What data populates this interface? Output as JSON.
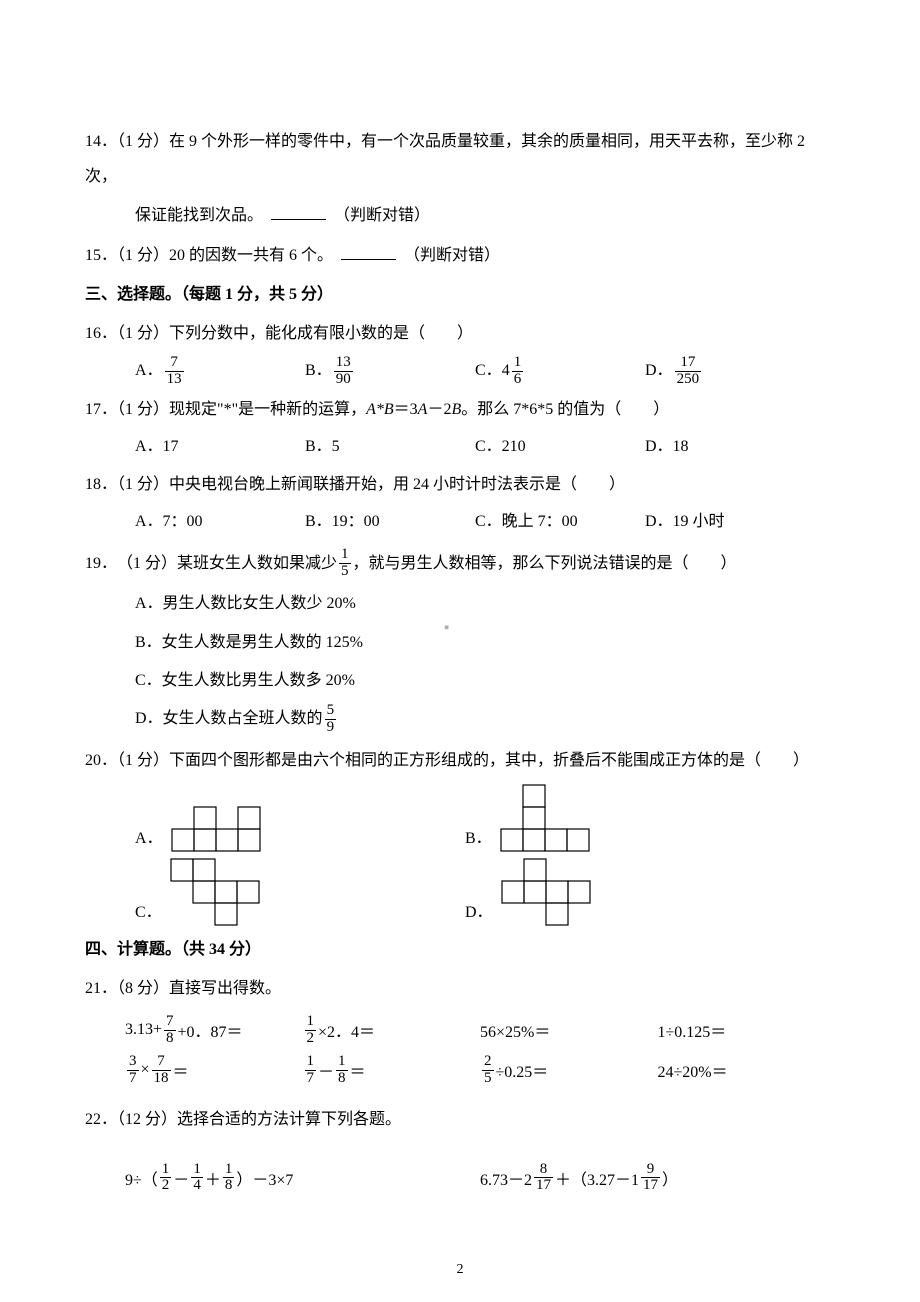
{
  "q14": {
    "num": "14．",
    "pts": "（1 分）",
    "text_a": "在 9 个外形一样的零件中，有一个次品质量较重，其余的质量相同，用天平去称，至少称 2 次，",
    "text_b": "保证能找到次品。",
    "judge": "（判断对错）"
  },
  "q15": {
    "num": "15．",
    "pts": "（1 分）",
    "text": "20 的因数一共有 6 个。",
    "judge": "（判断对错）"
  },
  "sec3": "三、选择题。（每题 1 分，共 5 分）",
  "q16": {
    "num": "16．",
    "pts": "（1 分）",
    "text": "下列分数中，能化成有限小数的是（　　）",
    "A": "A．",
    "B": "B．",
    "C": "C．",
    "D": "D．",
    "fracA_n": "7",
    "fracA_d": "13",
    "fracB_n": "13",
    "fracB_d": "90",
    "c_pre": "4",
    "fracC_n": "1",
    "fracC_d": "6",
    "fracD_n": "17",
    "fracD_d": "250"
  },
  "q17": {
    "num": "17．",
    "pts": "（1 分）",
    "text_a": "现规定\"*\"是一种新的运算，",
    "text_b": "＝3",
    "text_c": "－2",
    "text_d": "。那么 7*6*5 的值为（　　）",
    "AB_var": "A*B",
    "A_var": "A",
    "B_var": "B",
    "A": "A．17",
    "B": "B．5",
    "C": "C．210",
    "D": "D．18"
  },
  "q18": {
    "num": "18．",
    "pts": "（1 分）",
    "text": "中央电视台晚上新闻联播开始，用 24 小时计时法表示是（　　）",
    "A": "A．7：00",
    "B": "B．19：00",
    "C": "C．晚上 7：00",
    "D": "D．19 小时"
  },
  "q19": {
    "num": "19．",
    "pts": "（1 分）",
    "text_a": "某班女生人数如果减少",
    "frac_n": "1",
    "frac_d": "5",
    "text_b": "，就与男生人数相等，那么下列说法错误的是（　　）",
    "A": "A．男生人数比女生人数少 20%",
    "B": "B．女生人数是男生人数的 125%",
    "C": "C．女生人数比男生人数多 20%",
    "D_pre": "D．女生人数占全班人数的",
    "D_n": "5",
    "D_d": "9"
  },
  "q20": {
    "num": "20．",
    "pts": "（1 分）",
    "text": "下面四个图形都是由六个相同的正方形组成的，其中，折叠后不能围成正方体的是（　　）",
    "A": "A．",
    "B": "B．",
    "C": "C．",
    "D": "D．",
    "cell": 22,
    "patternA": [
      [
        0,
        1
      ],
      [
        0,
        3
      ],
      [
        1,
        0
      ],
      [
        1,
        1
      ],
      [
        1,
        2
      ],
      [
        1,
        3
      ]
    ],
    "patternB": [
      [
        0,
        1
      ],
      [
        1,
        1
      ],
      [
        2,
        0
      ],
      [
        2,
        1
      ],
      [
        2,
        2
      ],
      [
        2,
        3
      ]
    ],
    "patternC": [
      [
        0,
        0
      ],
      [
        0,
        1
      ],
      [
        1,
        1
      ],
      [
        1,
        2
      ],
      [
        1,
        3
      ],
      [
        2,
        2
      ]
    ],
    "patternD": [
      [
        0,
        1
      ],
      [
        1,
        0
      ],
      [
        1,
        1
      ],
      [
        1,
        2
      ],
      [
        1,
        3
      ],
      [
        2,
        2
      ]
    ]
  },
  "sec4": "四、计算题。（共 34 分）",
  "q21": {
    "num": "21．",
    "pts": "（8 分）",
    "text": "直接写出得数。",
    "c1_pre": "3.13+",
    "c1_n": "7",
    "c1_d": "8",
    "c1_post": "+0．87＝",
    "c2_n": "1",
    "c2_d": "2",
    "c2_post": "×2．4＝",
    "c3": "56×25%＝",
    "c4": "1÷0.125＝",
    "c5a_n": "3",
    "c5a_d": "7",
    "c5_mid": "×",
    "c5b_n": "7",
    "c5b_d": "18",
    "c5_post": "＝",
    "c6a_n": "1",
    "c6a_d": "7",
    "c6_mid": "－",
    "c6b_n": "1",
    "c6b_d": "8",
    "c6_post": "＝",
    "c7_n": "2",
    "c7_d": "5",
    "c7_post": "÷0.25＝",
    "c8": "24÷20%＝"
  },
  "q22": {
    "num": "22．",
    "pts": "（12 分）",
    "text": "选择合适的方法计算下列各题。",
    "l_pre": "9÷（",
    "l1_n": "1",
    "l1_d": "2",
    "l_m1": "－",
    "l2_n": "1",
    "l2_d": "4",
    "l_m2": "＋",
    "l3_n": "1",
    "l3_d": "8",
    "l_post": "）－3×7",
    "r_pre": "6.73－2",
    "r1_n": "8",
    "r1_d": "17",
    "r_mid": "＋（3.27－1",
    "r2_n": "9",
    "r2_d": "17",
    "r_post": "）"
  },
  "page_num": "2",
  "watermark": "▪"
}
